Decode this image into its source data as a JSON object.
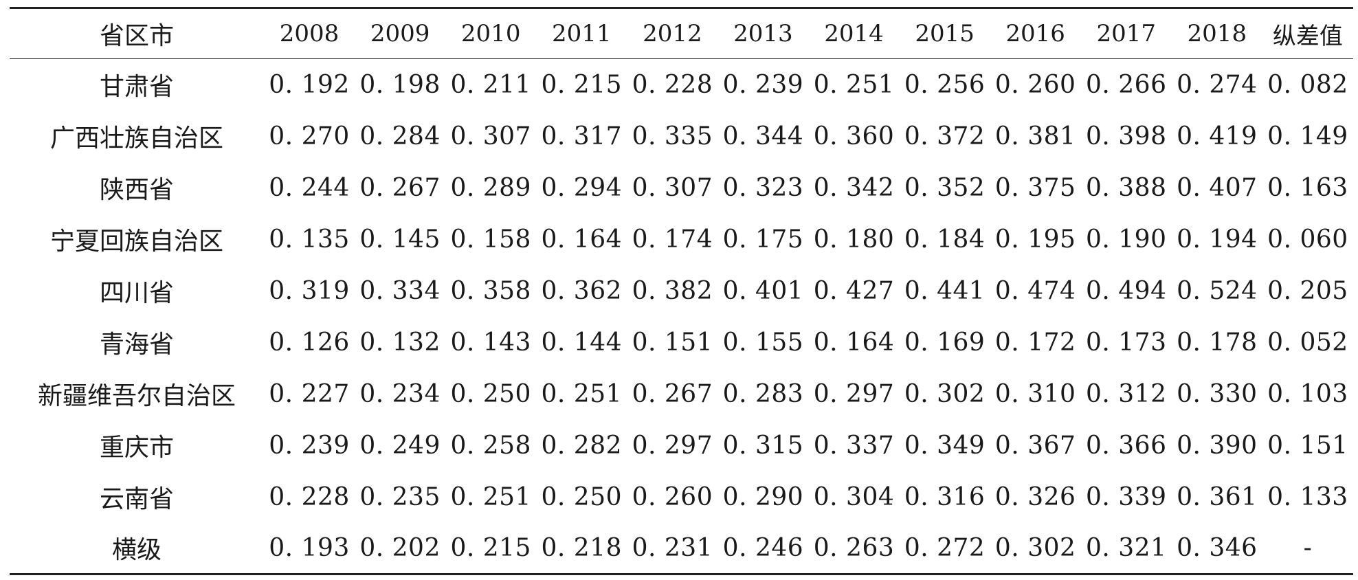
{
  "table": {
    "headers": [
      "省区市",
      "2008",
      "2009",
      "2010",
      "2011",
      "2012",
      "2013",
      "2014",
      "2015",
      "2016",
      "2017",
      "2018",
      "纵差值"
    ],
    "rows": [
      {
        "province": "甘肃省",
        "values": [
          "0. 192",
          "0. 198",
          "0. 211",
          "0. 215",
          "0. 228",
          "0. 239",
          "0. 251",
          "0. 256",
          "0. 260",
          "0. 266",
          "0. 274",
          "0. 082"
        ]
      },
      {
        "province": "广西壮族自治区",
        "values": [
          "0. 270",
          "0. 284",
          "0. 307",
          "0. 317",
          "0. 335",
          "0. 344",
          "0. 360",
          "0. 372",
          "0. 381",
          "0. 398",
          "0. 419",
          "0. 149"
        ]
      },
      {
        "province": "陕西省",
        "values": [
          "0. 244",
          "0. 267",
          "0. 289",
          "0. 294",
          "0. 307",
          "0. 323",
          "0. 342",
          "0. 352",
          "0. 375",
          "0. 388",
          "0. 407",
          "0. 163"
        ]
      },
      {
        "province": "宁夏回族自治区",
        "values": [
          "0. 135",
          "0. 145",
          "0. 158",
          "0. 164",
          "0. 174",
          "0. 175",
          "0. 180",
          "0. 184",
          "0. 195",
          "0. 190",
          "0. 194",
          "0. 060"
        ]
      },
      {
        "province": "四川省",
        "values": [
          "0. 319",
          "0. 334",
          "0. 358",
          "0. 362",
          "0. 382",
          "0. 401",
          "0. 427",
          "0. 441",
          "0. 474",
          "0. 494",
          "0. 524",
          "0. 205"
        ]
      },
      {
        "province": "青海省",
        "values": [
          "0. 126",
          "0. 132",
          "0. 143",
          "0. 144",
          "0. 151",
          "0. 155",
          "0. 164",
          "0. 169",
          "0. 172",
          "0. 173",
          "0. 178",
          "0. 052"
        ]
      },
      {
        "province": "新疆维吾尔自治区",
        "values": [
          "0. 227",
          "0. 234",
          "0. 250",
          "0. 251",
          "0. 267",
          "0. 283",
          "0. 297",
          "0. 302",
          "0. 310",
          "0. 312",
          "0. 330",
          "0. 103"
        ]
      },
      {
        "province": "重庆市",
        "values": [
          "0. 239",
          "0. 249",
          "0. 258",
          "0. 282",
          "0. 297",
          "0. 315",
          "0. 337",
          "0. 349",
          "0. 367",
          "0. 366",
          "0. 390",
          "0. 151"
        ]
      },
      {
        "province": "云南省",
        "values": [
          "0. 228",
          "0. 235",
          "0. 251",
          "0. 250",
          "0. 260",
          "0. 290",
          "0. 304",
          "0. 316",
          "0. 326",
          "0. 339",
          "0. 361",
          "0. 133"
        ]
      },
      {
        "province": "横级",
        "values": [
          "0. 193",
          "0. 202",
          "0. 215",
          "0. 218",
          "0. 231",
          "0. 246",
          "0. 263",
          "0. 272",
          "0. 302",
          "0. 321",
          "0. 346",
          "-"
        ]
      }
    ]
  }
}
